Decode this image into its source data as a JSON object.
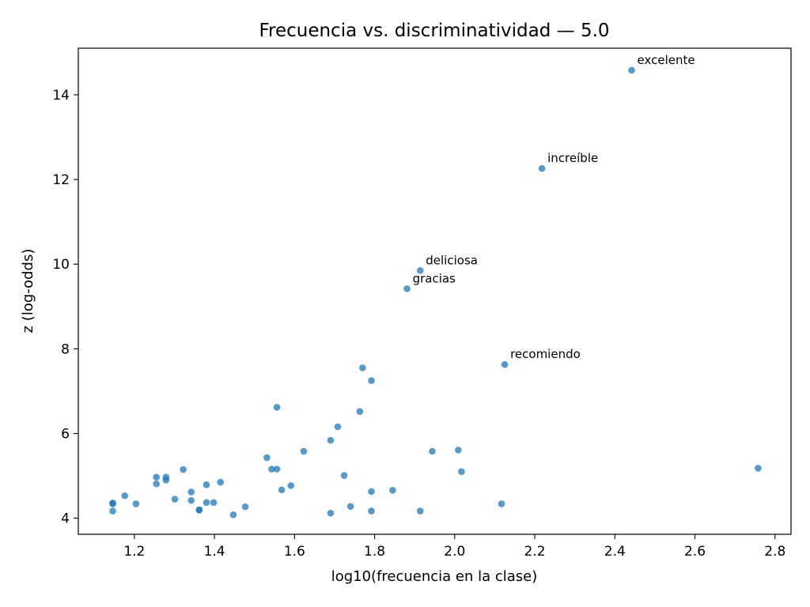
{
  "chart_data": {
    "type": "scatter",
    "title": "Frecuencia vs. discriminatividad — 5.0",
    "xlabel": "log10(frecuencia en la clase)",
    "ylabel": "z (log-odds)",
    "xlim": [
      1.06,
      2.84
    ],
    "ylim": [
      3.62,
      15.1
    ],
    "xticks": [
      "1.2",
      "1.4",
      "1.6",
      "1.8",
      "2.0",
      "2.2",
      "2.4",
      "2.6",
      "2.8"
    ],
    "yticks": [
      "4",
      "6",
      "8",
      "10",
      "12",
      "14"
    ],
    "grid": false,
    "legend": "none",
    "color": "#1f77b4",
    "points": [
      [
        2.442,
        14.58
      ],
      [
        2.218,
        12.26
      ],
      [
        1.914,
        9.85
      ],
      [
        1.881,
        9.42
      ],
      [
        2.125,
        7.63
      ],
      [
        1.77,
        7.55
      ],
      [
        1.792,
        7.25
      ],
      [
        1.556,
        6.62
      ],
      [
        1.763,
        6.52
      ],
      [
        1.708,
        6.16
      ],
      [
        1.69,
        5.84
      ],
      [
        1.623,
        5.58
      ],
      [
        1.944,
        5.58
      ],
      [
        2.009,
        5.61
      ],
      [
        1.531,
        5.43
      ],
      [
        2.017,
        5.1
      ],
      [
        1.543,
        5.16
      ],
      [
        1.556,
        5.16
      ],
      [
        1.322,
        5.15
      ],
      [
        1.724,
        5.01
      ],
      [
        2.758,
        5.18
      ],
      [
        1.255,
        4.97
      ],
      [
        1.279,
        4.97
      ],
      [
        1.279,
        4.9
      ],
      [
        1.255,
        4.81
      ],
      [
        1.415,
        4.85
      ],
      [
        1.38,
        4.79
      ],
      [
        1.591,
        4.77
      ],
      [
        1.568,
        4.67
      ],
      [
        1.845,
        4.66
      ],
      [
        1.792,
        4.63
      ],
      [
        1.342,
        4.62
      ],
      [
        1.176,
        4.53
      ],
      [
        1.301,
        4.45
      ],
      [
        1.342,
        4.42
      ],
      [
        1.146,
        4.36
      ],
      [
        1.146,
        4.34
      ],
      [
        1.204,
        4.34
      ],
      [
        1.38,
        4.37
      ],
      [
        1.398,
        4.37
      ],
      [
        2.117,
        4.34
      ],
      [
        1.477,
        4.27
      ],
      [
        1.74,
        4.28
      ],
      [
        1.362,
        4.2
      ],
      [
        1.362,
        4.19
      ],
      [
        1.146,
        4.17
      ],
      [
        1.792,
        4.17
      ],
      [
        1.914,
        4.17
      ],
      [
        1.69,
        4.12
      ],
      [
        1.447,
        4.08
      ]
    ],
    "annotations": [
      {
        "text": "excelente",
        "x": 2.442,
        "y": 14.58
      },
      {
        "text": "increíble",
        "x": 2.218,
        "y": 12.26
      },
      {
        "text": "deliciosa",
        "x": 1.914,
        "y": 9.85
      },
      {
        "text": "gracias",
        "x": 1.881,
        "y": 9.42
      },
      {
        "text": "recomiendo",
        "x": 2.125,
        "y": 7.63
      }
    ]
  }
}
